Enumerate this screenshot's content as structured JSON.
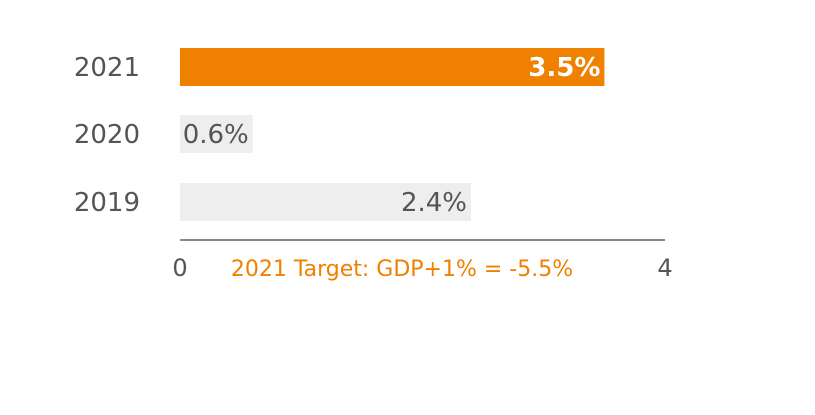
{
  "chart_data": {
    "type": "bar",
    "orientation": "horizontal",
    "categories": [
      "2021",
      "2020",
      "2019"
    ],
    "values": [
      3.5,
      0.6,
      2.4
    ],
    "value_labels": [
      "3.5%",
      "0.6%",
      "2.4%"
    ],
    "highlight_index": 0,
    "xlim": [
      0,
      4
    ],
    "xticks": [
      {
        "value": 0,
        "label": "0"
      },
      {
        "value": 4,
        "label": "4"
      }
    ],
    "annotation": "2021 Target: GDP+1% = -5.5%",
    "title": "",
    "xlabel": "",
    "ylabel": "",
    "grid": false,
    "legend": "none"
  },
  "colors": {
    "highlight_bar": "#f08000",
    "default_bar": "#eeeeee",
    "annotation": "#f08000",
    "axis": "#888888",
    "text": "#555555"
  }
}
